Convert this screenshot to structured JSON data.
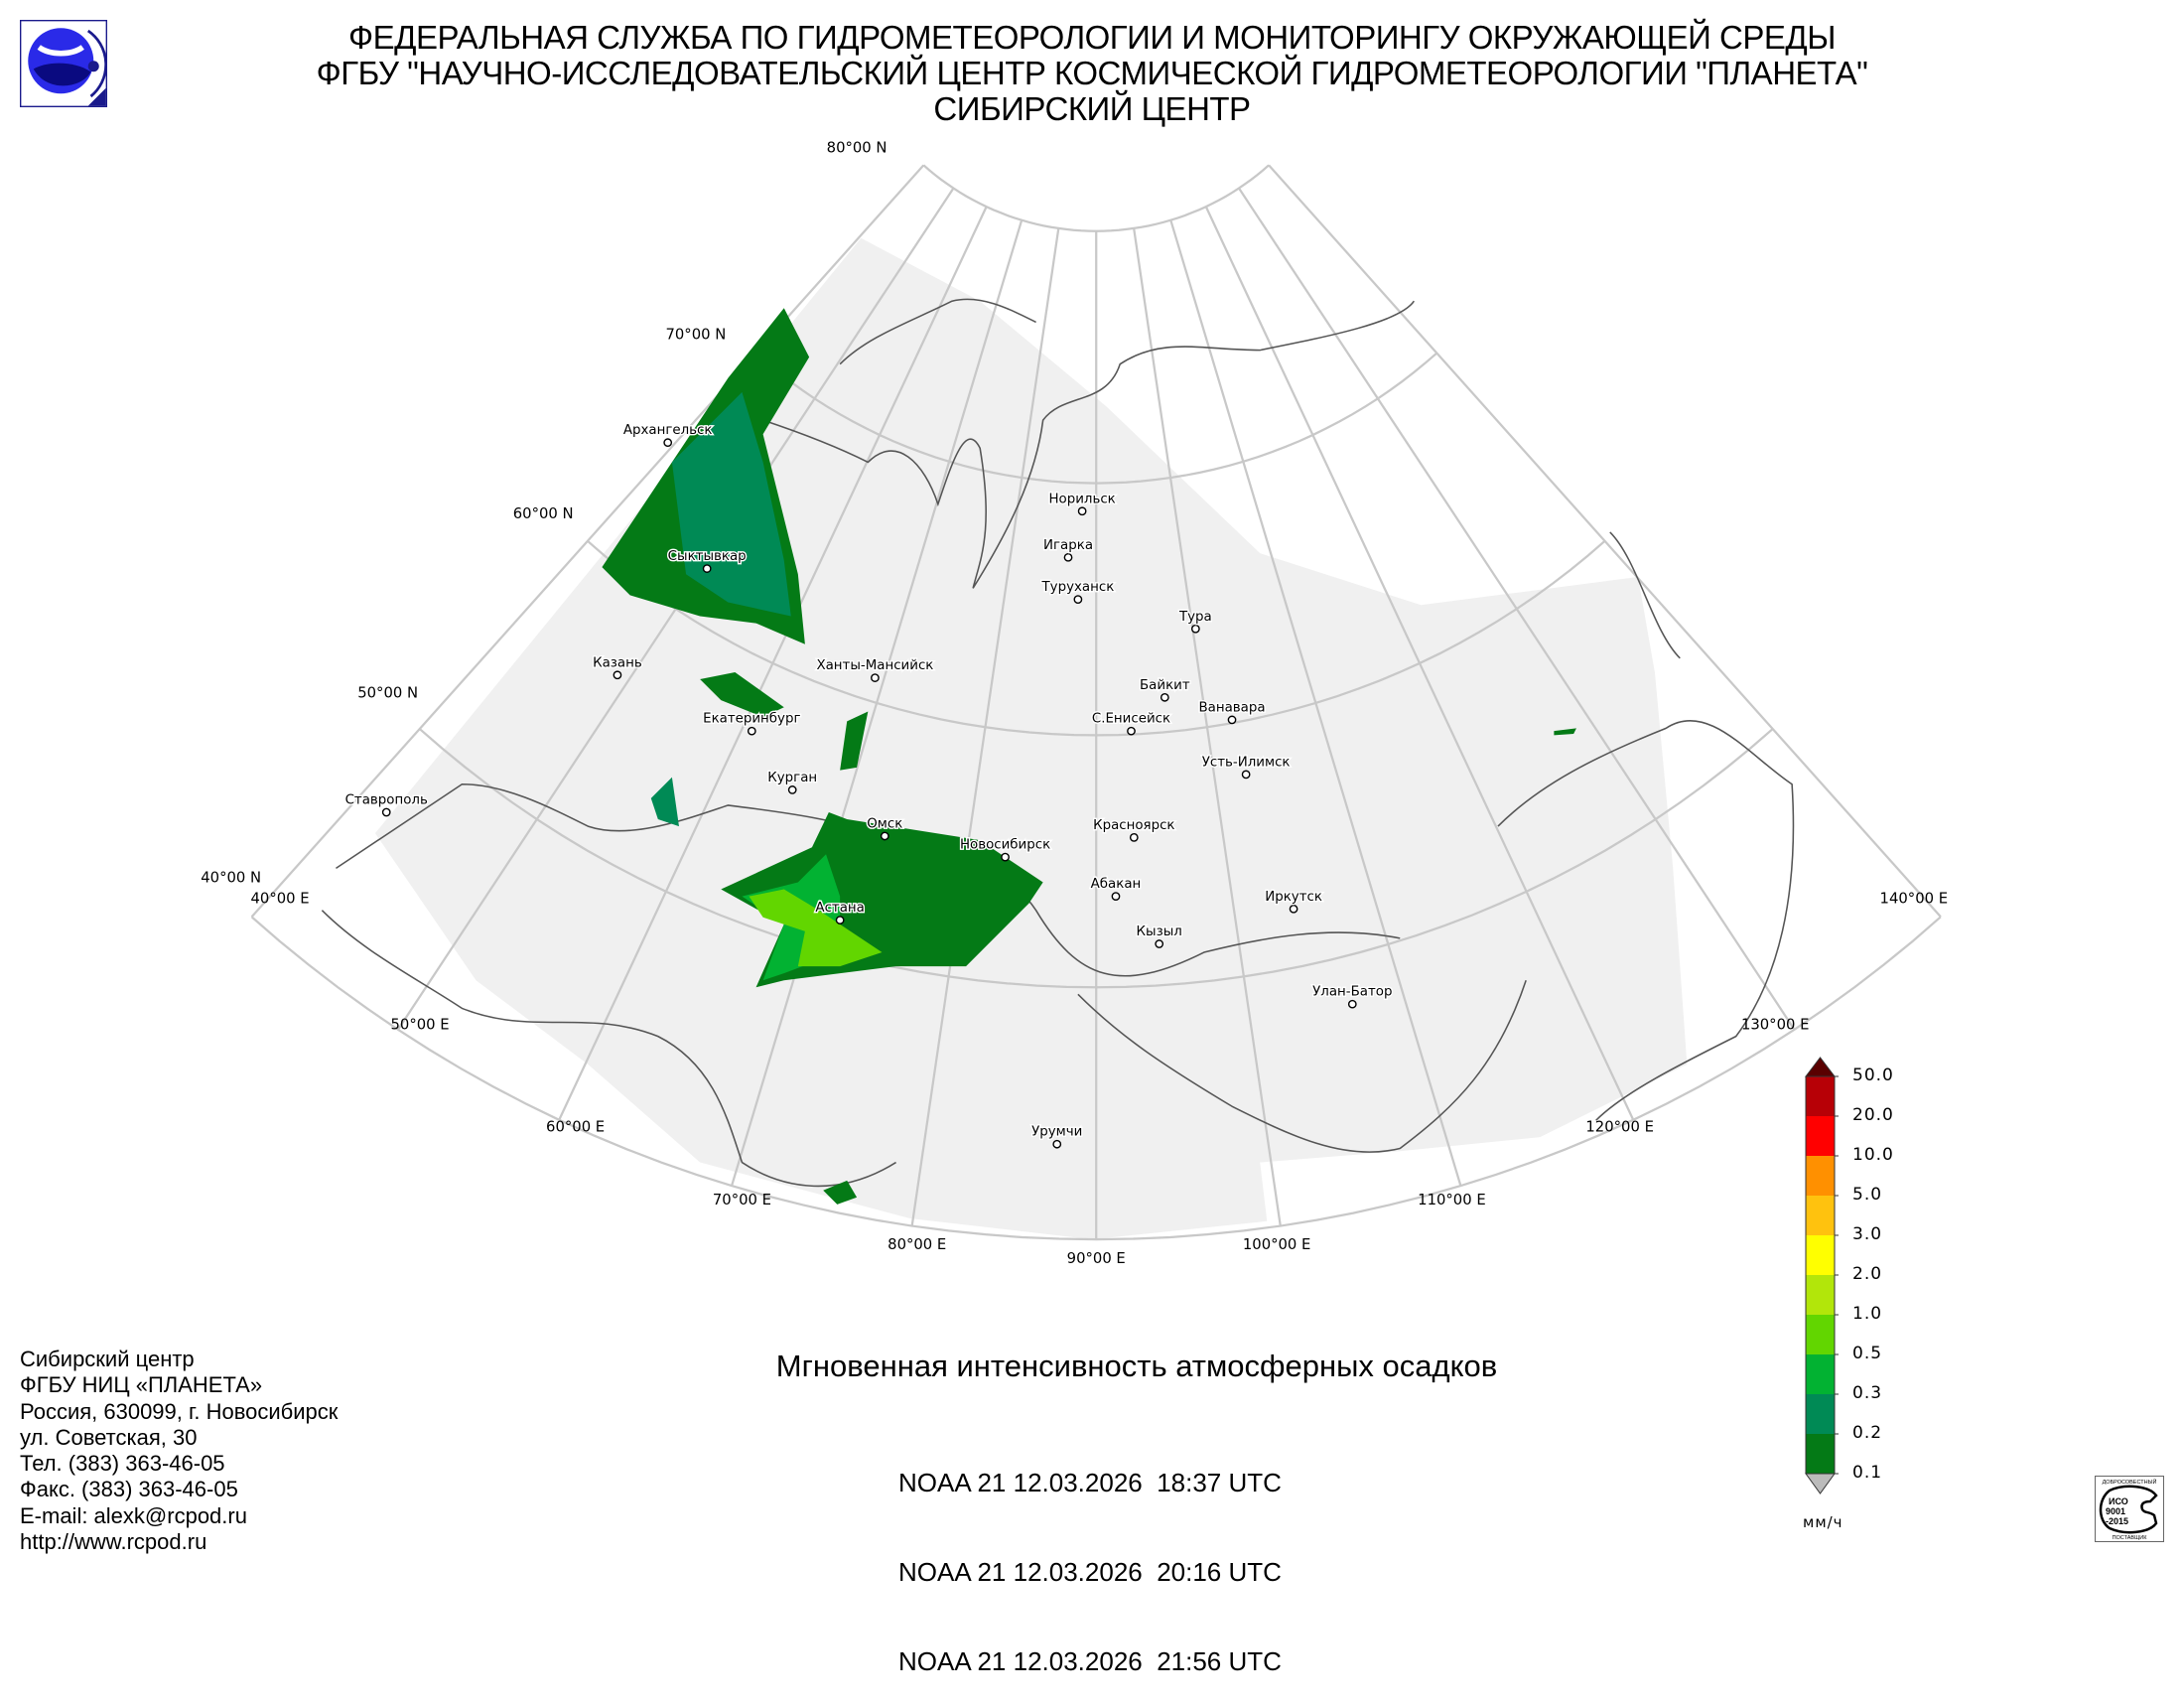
{
  "header": {
    "line1": "ФЕДЕРАЛЬНАЯ СЛУЖБА ПО ГИДРОМЕТЕОРОЛОГИИ И МОНИТОРИНГУ ОКРУЖАЮЩЕЙ СРЕДЫ",
    "line2": "ФГБУ \"НАУЧНО-ИССЛЕДОВАТЕЛЬСКИЙ ЦЕНТР КОСМИЧЕСКОЙ ГИДРОМЕТЕОРОЛОГИИ \"ПЛАНЕТА\"",
    "line3": "СИБИРСКИЙ ЦЕНТР",
    "logo_icon": "planeta-logo-icon"
  },
  "map": {
    "lat_labels": [
      "80°00 N",
      "70°00 N",
      "60°00 N",
      "50°00 N",
      "40°00 N"
    ],
    "lon_labels": [
      "40°00 E",
      "50°00 E",
      "60°00 E",
      "70°00 E",
      "80°00 E",
      "90°00 E",
      "100°00 E",
      "110°00 E",
      "120°00 E",
      "130°00 E",
      "140°00 E"
    ],
    "cities": [
      "Архангельск",
      "Сыктывкар",
      "Казань",
      "Екатеринбург",
      "Ставрополь",
      "Ханты-Мансийск",
      "Курган",
      "Омск",
      "Новосибирск",
      "Астана",
      "Норильск",
      "Игарка",
      "Туруханск",
      "Тура",
      "Байкит",
      "Ванавара",
      "С.Енисейск",
      "Усть-Илимск",
      "Красноярск",
      "Абакан",
      "Иркутск",
      "Кызыл",
      "Улан-Батор",
      "Урумчи"
    ],
    "colors": {
      "swath": "#f0f0f0",
      "grid": "#c8c8c8",
      "coast": "#555555"
    }
  },
  "product": {
    "title": "Мгновенная интенсивность атмосферных осадков",
    "passes": [
      "NOAA 21 12.03.2026  18:37 UTC",
      "NOAA 21 12.03.2026  20:16 UTC",
      "NOAA 21 12.03.2026  21:56 UTC"
    ]
  },
  "legend": {
    "unit": "мм/ч",
    "ticks": [
      "50.0",
      "20.0",
      "10.0",
      "5.0",
      "3.0",
      "2.0",
      "1.0",
      "0.5",
      "0.3",
      "0.2",
      "0.1"
    ],
    "colors": [
      "#b70006",
      "#ff0000",
      "#ff9000",
      "#ffc20e",
      "#ffff00",
      "#b2e60a",
      "#62d600",
      "#02b232",
      "#008a55",
      "#047a16"
    ],
    "over_color": "#5a0000",
    "under_color": "#bbbbbb"
  },
  "contact": {
    "lines": [
      "Сибирский центр",
      "ФГБУ НИЦ «ПЛАНЕТА»",
      "Россия, 630099, г. Новосибирск",
      "ул. Советская, 30",
      "Тел. (383) 363-46-05",
      "Факс. (383) 363-46-05",
      "E-mail: alexk@rcpod.ru",
      "http://www.rcpod.ru"
    ]
  },
  "certificate": {
    "icon": "iso-9001-certificate-icon",
    "text": [
      "ДОБРОСОВЕСТНЫЙ",
      "ИСО",
      "9001",
      "-2015",
      "ПОСТАВЩИК"
    ]
  }
}
